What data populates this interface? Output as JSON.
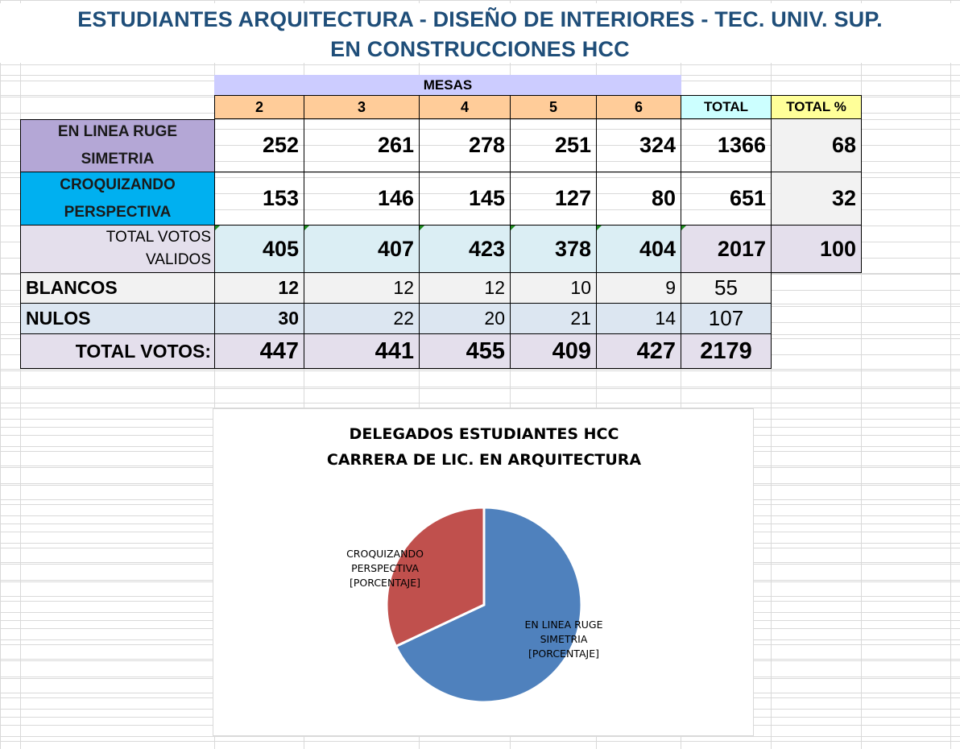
{
  "title": {
    "line1": "ESTUDIANTES ARQUITECTURA - DISEÑO DE INTERIORES - TEC. UNIV. SUP.",
    "line2": "EN CONSTRUCCIONES HCC"
  },
  "table": {
    "mesas_label": "MESAS",
    "columns": [
      "2",
      "3",
      "4",
      "5",
      "6"
    ],
    "total_label": "TOTAL",
    "total_pct_label": "TOTAL %",
    "rows": {
      "linea": {
        "label1": "EN LINEA RUGE",
        "label2": "SIMETRIA",
        "values": [
          "252",
          "261",
          "278",
          "251",
          "324"
        ],
        "total": "1366",
        "pct": "68"
      },
      "croqui": {
        "label1": "CROQUIZANDO",
        "label2": "PERSPECTIVA",
        "values": [
          "153",
          "146",
          "145",
          "127",
          "80"
        ],
        "total": "651",
        "pct": "32"
      },
      "validos": {
        "label1": "TOTAL VOTOS",
        "label2": "VALIDOS",
        "values": [
          "405",
          "407",
          "423",
          "378",
          "404"
        ],
        "total": "2017",
        "pct": "100"
      },
      "blancos": {
        "label": "BLANCOS",
        "values": [
          "12",
          "12",
          "12",
          "10",
          "9"
        ],
        "total": "55"
      },
      "nulos": {
        "label": "NULOS",
        "values": [
          "30",
          "22",
          "20",
          "21",
          "14"
        ],
        "total": "107"
      },
      "total": {
        "label": "TOTAL VOTOS:",
        "values": [
          "447",
          "441",
          "455",
          "409",
          "427"
        ],
        "total": "2179"
      }
    }
  },
  "colors": {
    "title": "#1f4e79",
    "mesas_header": "#ccccff",
    "column_header": "#ffcc99",
    "total_header": "#ccffff",
    "pct_header": "#ffff99",
    "linea_label": "#b4a7d6",
    "croqui_label": "#00b0f0",
    "validos_row": "#dbeef4",
    "lavender": "#e4dfec",
    "light_gray": "#f2f2f2",
    "light_blue": "#dce6f1",
    "pie_blue": "#4f81bd",
    "pie_red": "#c0504d"
  },
  "chart_data": {
    "type": "pie",
    "title": "DELEGADOS ESTUDIANTES HCC",
    "subtitle": "CARRERA DE LIC. EN ARQUITECTURA",
    "slices": [
      {
        "name": "EN LINEA RUGE SIMETRIA",
        "value": 68,
        "color": "#4f81bd",
        "label_lines": [
          "EN LINEA RUGE",
          "SIMETRIA",
          "[PORCENTAJE]"
        ]
      },
      {
        "name": "CROQUIZANDO PERSPECTIVA",
        "value": 32,
        "color": "#c0504d",
        "label_lines": [
          "CROQUIZANDO",
          "PERSPECTIVA",
          "[PORCENTAJE]"
        ]
      }
    ]
  }
}
